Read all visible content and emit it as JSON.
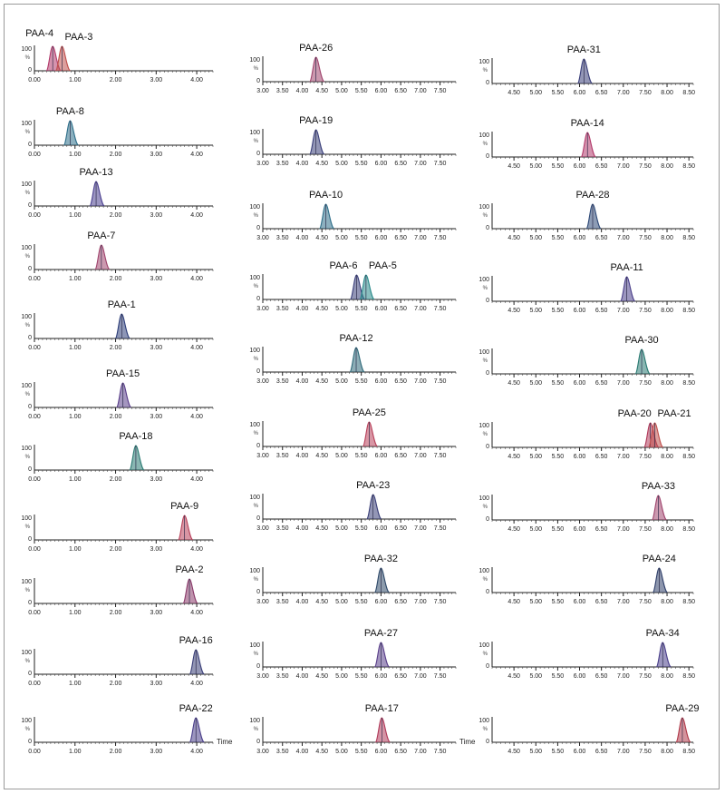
{
  "chart_data": {
    "type": "line",
    "y_ticks": [
      "100",
      "0"
    ],
    "y_unit_label": "%",
    "x_axis_title": "Time",
    "columns": [
      {
        "x_ticks": [
          "0.00",
          "1.00",
          "2.00",
          "3.00",
          "4.00"
        ],
        "xlim": [
          0.0,
          4.4
        ],
        "panels": [
          {
            "peaks": [
              {
                "label": "PAA-4",
                "rt": 0.45,
                "color": "#b23a6b"
              },
              {
                "label": "PAA-3",
                "rt": 0.68,
                "color": "#c0504d"
              }
            ]
          },
          {
            "peaks": [
              {
                "label": "PAA-8",
                "rt": 0.88,
                "color": "#2e6f8a"
              }
            ]
          },
          {
            "peaks": [
              {
                "label": "PAA-13",
                "rt": 1.52,
                "color": "#4a3f8f"
              }
            ]
          },
          {
            "peaks": [
              {
                "label": "PAA-7",
                "rt": 1.65,
                "color": "#a0456e"
              }
            ]
          },
          {
            "peaks": [
              {
                "label": "PAA-1",
                "rt": 2.15,
                "color": "#2f3f7a"
              }
            ]
          },
          {
            "peaks": [
              {
                "label": "PAA-15",
                "rt": 2.18,
                "color": "#5a3f8a"
              }
            ]
          },
          {
            "peaks": [
              {
                "label": "PAA-18",
                "rt": 2.5,
                "color": "#2a7a72"
              }
            ]
          },
          {
            "peaks": [
              {
                "label": "PAA-9",
                "rt": 3.7,
                "color": "#b8405a"
              }
            ]
          },
          {
            "peaks": [
              {
                "label": "PAA-2",
                "rt": 3.82,
                "color": "#8a3a6a"
              }
            ]
          },
          {
            "peaks": [
              {
                "label": "PAA-16",
                "rt": 3.98,
                "color": "#3a3f78"
              }
            ]
          },
          {
            "peaks": [
              {
                "label": "PAA-22",
                "rt": 3.98,
                "color": "#4a3f8a"
              }
            ],
            "show_time": true
          }
        ]
      },
      {
        "x_ticks": [
          "3.00",
          "3.50",
          "4.00",
          "4.50",
          "5.00",
          "5.50",
          "6.00",
          "6.50",
          "7.00",
          "7.50"
        ],
        "xlim": [
          3.0,
          7.9
        ],
        "panels": [
          {
            "peaks": [
              {
                "label": "PAA-26",
                "rt": 4.35,
                "color": "#a0456e"
              }
            ]
          },
          {
            "peaks": [
              {
                "label": "PAA-19",
                "rt": 4.35,
                "color": "#3a3f7a"
              }
            ]
          },
          {
            "peaks": [
              {
                "label": "PAA-10",
                "rt": 4.6,
                "color": "#2f6f8a"
              }
            ]
          },
          {
            "peaks": [
              {
                "label": "PAA-6",
                "rt": 5.38,
                "color": "#3a3f7a"
              },
              {
                "label": "PAA-5",
                "rt": 5.62,
                "color": "#2a8a8a"
              }
            ]
          },
          {
            "peaks": [
              {
                "label": "PAA-12",
                "rt": 5.37,
                "color": "#2f6a7a"
              }
            ]
          },
          {
            "peaks": [
              {
                "label": "PAA-25",
                "rt": 5.7,
                "color": "#b8405a"
              }
            ]
          },
          {
            "peaks": [
              {
                "label": "PAA-23",
                "rt": 5.8,
                "color": "#3a3f78"
              }
            ]
          },
          {
            "peaks": [
              {
                "label": "PAA-32",
                "rt": 6.0,
                "color": "#2f4a6a"
              }
            ]
          },
          {
            "peaks": [
              {
                "label": "PAA-27",
                "rt": 6.0,
                "color": "#5a3f8a"
              }
            ]
          },
          {
            "peaks": [
              {
                "label": "PAA-17",
                "rt": 6.02,
                "color": "#b03a5a"
              }
            ],
            "show_time": true
          }
        ]
      },
      {
        "x_ticks": [
          "4.50",
          "5.00",
          "5.50",
          "6.00",
          "6.50",
          "7.00",
          "7.50",
          "8.00",
          "8.50"
        ],
        "xlim": [
          4.0,
          8.6
        ],
        "panels": [
          {
            "peaks": [
              {
                "label": "PAA-31",
                "rt": 6.1,
                "color": "#3a3f7a"
              }
            ]
          },
          {
            "peaks": [
              {
                "label": "PAA-14",
                "rt": 6.18,
                "color": "#b23a6b"
              }
            ]
          },
          {
            "peaks": [
              {
                "label": "PAA-28",
                "rt": 6.3,
                "color": "#2f4a78"
              }
            ]
          },
          {
            "peaks": [
              {
                "label": "PAA-11",
                "rt": 7.08,
                "color": "#4a3f8a"
              }
            ]
          },
          {
            "peaks": [
              {
                "label": "PAA-30",
                "rt": 7.42,
                "color": "#2a7a72"
              }
            ]
          },
          {
            "peaks": [
              {
                "label": "PAA-20",
                "rt": 7.62,
                "color": "#b03a5a"
              },
              {
                "label": "PAA-21",
                "rt": 7.72,
                "color": "#c0504d"
              }
            ]
          },
          {
            "peaks": [
              {
                "label": "PAA-33",
                "rt": 7.8,
                "color": "#a0456e"
              }
            ]
          },
          {
            "peaks": [
              {
                "label": "PAA-24",
                "rt": 7.82,
                "color": "#2f3f6a"
              }
            ]
          },
          {
            "peaks": [
              {
                "label": "PAA-34",
                "rt": 7.9,
                "color": "#4a3f8a"
              }
            ]
          },
          {
            "peaks": [
              {
                "label": "PAA-29",
                "rt": 8.35,
                "color": "#b03a4a"
              }
            ]
          }
        ]
      }
    ]
  }
}
